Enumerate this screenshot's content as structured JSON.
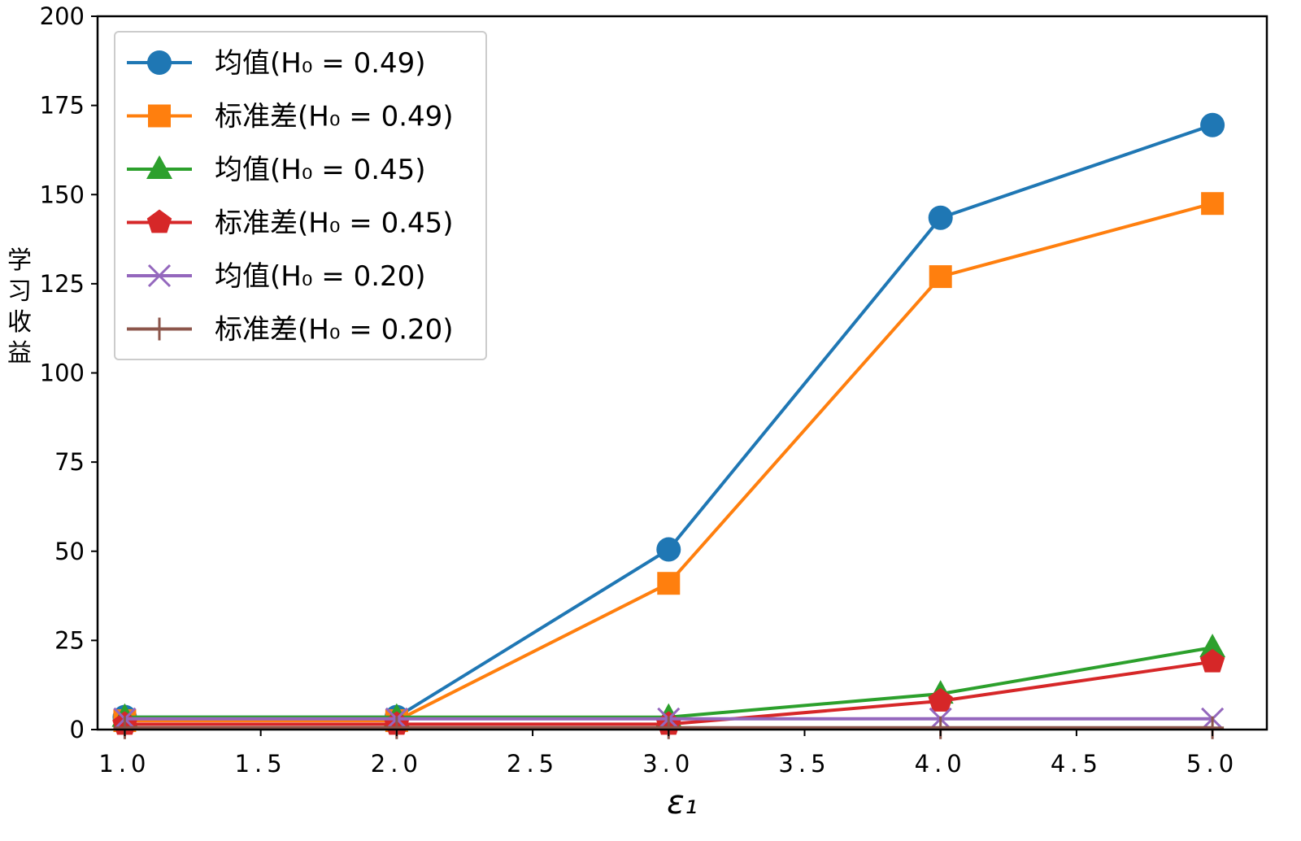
{
  "chart_data": {
    "type": "line",
    "xlabel": "ε₁",
    "ylabel": "学习收益",
    "xlim": [
      0.9,
      5.2
    ],
    "ylim": [
      0,
      200
    ],
    "x_ticks": [
      "1.0",
      "1.5",
      "2.0",
      "2.5",
      "3.0",
      "3.5",
      "4.0",
      "4.5",
      "5.0"
    ],
    "x_tick_values": [
      1.0,
      1.5,
      2.0,
      2.5,
      3.0,
      3.5,
      4.0,
      4.5,
      5.0
    ],
    "y_ticks": [
      "0",
      "25",
      "50",
      "75",
      "100",
      "125",
      "150",
      "175",
      "200"
    ],
    "y_tick_values": [
      0,
      25,
      50,
      75,
      100,
      125,
      150,
      175,
      200
    ],
    "grid": false,
    "legend_position": "top-left",
    "x": [
      1.0,
      2.0,
      3.0,
      4.0,
      5.0
    ],
    "series": [
      {
        "name": "均值(H₀ = 0.49)",
        "values": [
          3.5,
          3.5,
          50.5,
          143.5,
          169.5
        ],
        "color": "#1f77b4",
        "marker": "circle"
      },
      {
        "name": "标准差(H₀ = 0.49)",
        "values": [
          2.5,
          2.5,
          41,
          127,
          147.5
        ],
        "color": "#ff7f0e",
        "marker": "square"
      },
      {
        "name": "均值(H₀ = 0.45)",
        "values": [
          3.5,
          3.5,
          3.5,
          10,
          23
        ],
        "color": "#2ca02c",
        "marker": "triangle"
      },
      {
        "name": "标准差(H₀ = 0.45)",
        "values": [
          1.5,
          1.5,
          1.5,
          8,
          19
        ],
        "color": "#d62728",
        "marker": "pentagon"
      },
      {
        "name": "均值(H₀ = 0.20)",
        "values": [
          3,
          3,
          3,
          3,
          3
        ],
        "color": "#9467bd",
        "marker": "x"
      },
      {
        "name": "标准差(H₀ = 0.20)",
        "values": [
          0.5,
          0.5,
          0.5,
          0.5,
          0.5
        ],
        "color": "#8c564b",
        "marker": "plus"
      }
    ]
  }
}
